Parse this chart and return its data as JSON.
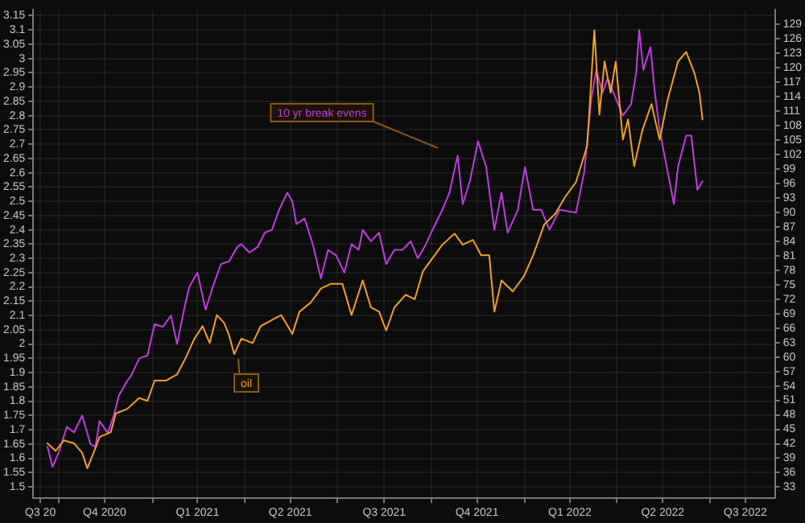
{
  "chart_data": {
    "type": "line",
    "grid": true,
    "legend": false,
    "marker": "none",
    "line_style": "solid",
    "xlim": [
      "2020-09-06",
      "2022-09-03"
    ],
    "xticks": [
      {
        "value": "2020-09-13",
        "label": "Q3 20"
      },
      {
        "value": "2020-10-01",
        "label": null
      },
      {
        "value": "2020-11-15",
        "label": "Q4 2020"
      },
      {
        "value": "2021-01-01",
        "label": null
      },
      {
        "value": "2021-02-14",
        "label": "Q1 2021"
      },
      {
        "value": "2021-04-01",
        "label": null
      },
      {
        "value": "2021-05-16",
        "label": "Q2 2021"
      },
      {
        "value": "2021-07-01",
        "label": null
      },
      {
        "value": "2021-08-16",
        "label": "Q3 2021"
      },
      {
        "value": "2021-10-01",
        "label": null
      },
      {
        "value": "2021-11-15",
        "label": "Q4 2021"
      },
      {
        "value": "2022-01-01",
        "label": null
      },
      {
        "value": "2022-02-14",
        "label": "Q1 2022"
      },
      {
        "value": "2022-04-01",
        "label": null
      },
      {
        "value": "2022-05-16",
        "label": "Q2 2022"
      },
      {
        "value": "2022-07-01",
        "label": null
      },
      {
        "value": "2022-08-05",
        "label": "Q3 2022"
      }
    ],
    "ylim": [
      1.46,
      3.17
    ],
    "yticks": [
      1.5,
      1.55,
      1.6,
      1.65,
      1.7,
      1.75,
      1.8,
      1.85,
      1.9,
      1.95,
      2,
      2.05,
      2.1,
      2.15,
      2.2,
      2.25,
      2.3,
      2.35,
      2.4,
      2.45,
      2.5,
      2.55,
      2.6,
      2.65,
      2.7,
      2.75,
      2.8,
      2.85,
      2.9,
      2.95,
      3,
      3.05,
      3.1,
      3.15
    ],
    "y2lim": [
      30.7,
      132
    ],
    "y2ticks": [
      33,
      36,
      39,
      42,
      45,
      48,
      51,
      54,
      57,
      60,
      63,
      66,
      69,
      72,
      75,
      78,
      81,
      84,
      87,
      90,
      93,
      96,
      99,
      102,
      105,
      108,
      111,
      114,
      117,
      120,
      123,
      126,
      129
    ],
    "series": [
      {
        "name": "10 yr break evens",
        "color": "#c03ce0",
        "x": [
          "2020-09-20",
          "2020-09-25",
          "2020-10-01",
          "2020-10-09",
          "2020-10-16",
          "2020-10-24",
          "2020-11-01",
          "2020-11-06",
          "2020-11-10",
          "2020-11-18",
          "2020-11-24",
          "2020-11-29",
          "2020-12-07",
          "2020-12-11",
          "2020-12-19",
          "2020-12-27",
          "2021-01-03",
          "2021-01-11",
          "2021-01-19",
          "2021-01-25",
          "2021-02-02",
          "2021-02-06",
          "2021-02-14",
          "2021-02-22",
          "2021-03-01",
          "2021-03-09",
          "2021-03-17",
          "2021-03-25",
          "2021-03-29",
          "2021-04-06",
          "2021-04-14",
          "2021-04-21",
          "2021-04-28",
          "2021-05-05",
          "2021-05-13",
          "2021-05-18",
          "2021-05-22",
          "2021-05-30",
          "2021-06-07",
          "2021-06-15",
          "2021-06-22",
          "2021-06-30",
          "2021-07-08",
          "2021-07-15",
          "2021-07-22",
          "2021-07-26",
          "2021-08-03",
          "2021-08-11",
          "2021-08-18",
          "2021-08-26",
          "2021-09-03",
          "2021-09-11",
          "2021-09-18",
          "2021-09-26",
          "2021-10-01",
          "2021-10-12",
          "2021-10-19",
          "2021-10-27",
          "2021-11-01",
          "2021-11-08",
          "2021-11-16",
          "2021-11-24",
          "2021-12-02",
          "2021-12-09",
          "2021-12-15",
          "2021-12-25",
          "2022-01-01",
          "2022-01-09",
          "2022-01-17",
          "2022-01-25",
          "2022-02-04",
          "2022-02-20",
          "2022-02-28",
          "2022-03-07",
          "2022-03-12",
          "2022-03-18",
          "2022-03-23",
          "2022-03-31",
          "2022-04-07",
          "2022-04-15",
          "2022-04-20",
          "2022-04-23",
          "2022-04-27",
          "2022-05-04",
          "2022-05-08",
          "2022-05-13",
          "2022-05-21",
          "2022-05-27",
          "2022-05-31",
          "2022-06-08",
          "2022-06-13",
          "2022-06-19",
          "2022-06-24"
        ],
        "values": [
          1.64,
          1.57,
          1.62,
          1.71,
          1.69,
          1.75,
          1.65,
          1.64,
          1.73,
          1.69,
          1.75,
          1.82,
          1.87,
          1.89,
          1.95,
          1.96,
          2.07,
          2.06,
          2.1,
          2,
          2.14,
          2.2,
          2.25,
          2.12,
          2.2,
          2.28,
          2.29,
          2.34,
          2.35,
          2.32,
          2.34,
          2.39,
          2.4,
          2.47,
          2.53,
          2.5,
          2.42,
          2.44,
          2.35,
          2.23,
          2.33,
          2.31,
          2.25,
          2.35,
          2.33,
          2.4,
          2.36,
          2.39,
          2.28,
          2.33,
          2.33,
          2.36,
          2.3,
          2.35,
          2.39,
          2.47,
          2.53,
          2.66,
          2.49,
          2.57,
          2.71,
          2.62,
          2.4,
          2.53,
          2.39,
          2.47,
          2.62,
          2.47,
          2.47,
          2.4,
          2.47,
          2.46,
          2.6,
          2.86,
          2.96,
          2.88,
          2.93,
          2.86,
          2.8,
          2.84,
          2.95,
          3.1,
          2.96,
          3.04,
          2.89,
          2.75,
          2.6,
          2.49,
          2.62,
          2.73,
          2.73,
          2.54,
          2.57
        ]
      },
      {
        "name": "oil",
        "color": "#f0a020",
        "axis": "y2",
        "x": [
          "2020-09-20",
          "2020-09-28",
          "2020-10-06",
          "2020-10-16",
          "2020-10-24",
          "2020-10-29",
          "2020-11-06",
          "2020-11-10",
          "2020-11-21",
          "2020-11-26",
          "2020-12-07",
          "2020-12-19",
          "2020-12-27",
          "2021-01-03",
          "2021-01-14",
          "2021-01-25",
          "2021-02-02",
          "2021-02-11",
          "2021-02-19",
          "2021-02-26",
          "2021-03-05",
          "2021-03-12",
          "2021-03-17",
          "2021-03-22",
          "2021-03-29",
          "2021-04-09",
          "2021-04-17",
          "2021-04-28",
          "2021-05-07",
          "2021-05-18",
          "2021-05-25",
          "2021-06-05",
          "2021-06-15",
          "2021-06-25",
          "2021-07-06",
          "2021-07-15",
          "2021-07-26",
          "2021-08-03",
          "2021-08-11",
          "2021-08-18",
          "2021-08-26",
          "2021-09-06",
          "2021-09-15",
          "2021-09-23",
          "2021-10-12",
          "2021-10-24",
          "2021-11-01",
          "2021-11-11",
          "2021-11-19",
          "2021-11-27",
          "2021-12-02",
          "2021-12-09",
          "2021-12-20",
          "2021-12-31",
          "2022-01-09",
          "2022-01-20",
          "2022-01-31",
          "2022-02-09",
          "2022-02-20",
          "2022-03-03",
          "2022-03-10",
          "2022-03-15",
          "2022-03-20",
          "2022-03-26",
          "2022-03-31",
          "2022-04-07",
          "2022-04-12",
          "2022-04-18",
          "2022-04-26",
          "2022-05-05",
          "2022-05-13",
          "2022-05-21",
          "2022-05-31",
          "2022-06-08",
          "2022-06-16",
          "2022-06-21",
          "2022-06-24"
        ],
        "values": [
          42.1,
          40.5,
          42.7,
          42.1,
          40.1,
          36.9,
          41.1,
          43.4,
          44.4,
          48.3,
          49.2,
          51.5,
          50.9,
          55.1,
          55.1,
          56.4,
          59.6,
          63.8,
          66.4,
          62.9,
          68.7,
          67.1,
          64.5,
          60.6,
          63.8,
          62.9,
          66.4,
          67.7,
          68.7,
          64.8,
          69.4,
          71.3,
          74.2,
          75.2,
          75.2,
          68.7,
          75.9,
          70.3,
          69.4,
          65.5,
          70.3,
          72.9,
          72,
          77.8,
          83.3,
          85.6,
          83.3,
          84.3,
          81.1,
          81.1,
          69.4,
          75.9,
          73.6,
          76.8,
          81.1,
          87.5,
          89.8,
          93.1,
          96.3,
          103.8,
          127.8,
          110.3,
          121.3,
          114.8,
          121.3,
          105.1,
          109.3,
          99.6,
          107,
          112.5,
          105.1,
          113.5,
          121.3,
          123.3,
          119,
          114.8,
          109.3
        ]
      }
    ]
  }
}
